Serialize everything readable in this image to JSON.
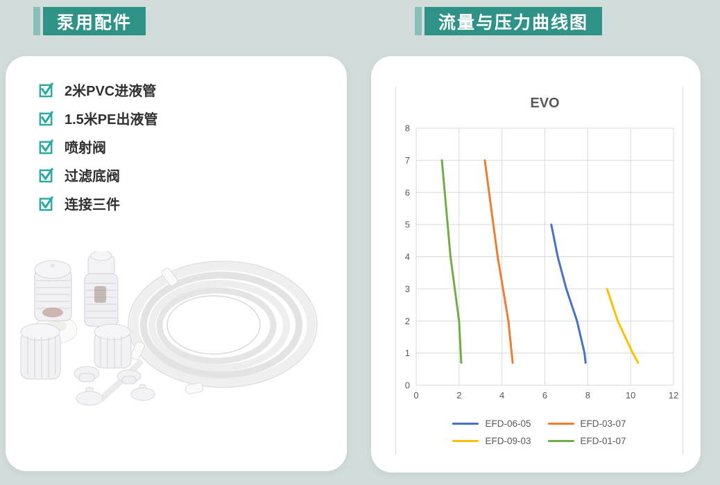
{
  "page": {
    "background": "#d2dcdb"
  },
  "left_panel": {
    "header": "泵用配件",
    "items": [
      "2米PVC进液管",
      "1.5米PE出液管",
      "喷射阀",
      "过滤底阀",
      "连接三件"
    ]
  },
  "right_panel": {
    "header": "流量与压力曲线图"
  },
  "colors": {
    "header_teal": "#2e9287",
    "header_accent_bar": "#88c0b9",
    "checkbox_teal": "#2ca9a1",
    "chart_text": "#595959",
    "gridline": "#d9d9d9"
  },
  "icons": {
    "checkbox": "checkbox-checked"
  },
  "chart_data": {
    "type": "line",
    "title": "EVO",
    "xlabel": "",
    "ylabel": "",
    "xlim": [
      0,
      12
    ],
    "ylim": [
      0,
      8
    ],
    "x_ticks": [
      0,
      2,
      4,
      6,
      8,
      10,
      12
    ],
    "y_ticks": [
      0,
      1,
      2,
      3,
      4,
      5,
      6,
      7,
      8
    ],
    "grid": true,
    "legend_position": "bottom",
    "series": [
      {
        "name": "EFD-06-05",
        "color": "#4472c4",
        "points": [
          [
            6.3,
            5
          ],
          [
            6.6,
            4
          ],
          [
            7.0,
            3
          ],
          [
            7.5,
            2
          ],
          [
            7.85,
            1
          ],
          [
            7.9,
            0.7
          ]
        ]
      },
      {
        "name": "EFD-03-07",
        "color": "#ed7d31",
        "points": [
          [
            3.2,
            7
          ],
          [
            3.8,
            4
          ],
          [
            4.3,
            2
          ],
          [
            4.5,
            0.7
          ]
        ]
      },
      {
        "name": "EFD-09-03",
        "color": "#ffc000",
        "points": [
          [
            8.9,
            3
          ],
          [
            9.4,
            2
          ],
          [
            10.1,
            1
          ],
          [
            10.35,
            0.7
          ]
        ]
      },
      {
        "name": "EFD-01-07",
        "color": "#70ad47",
        "points": [
          [
            1.2,
            7
          ],
          [
            1.6,
            4
          ],
          [
            2.0,
            2
          ],
          [
            2.1,
            0.7
          ]
        ]
      }
    ]
  }
}
